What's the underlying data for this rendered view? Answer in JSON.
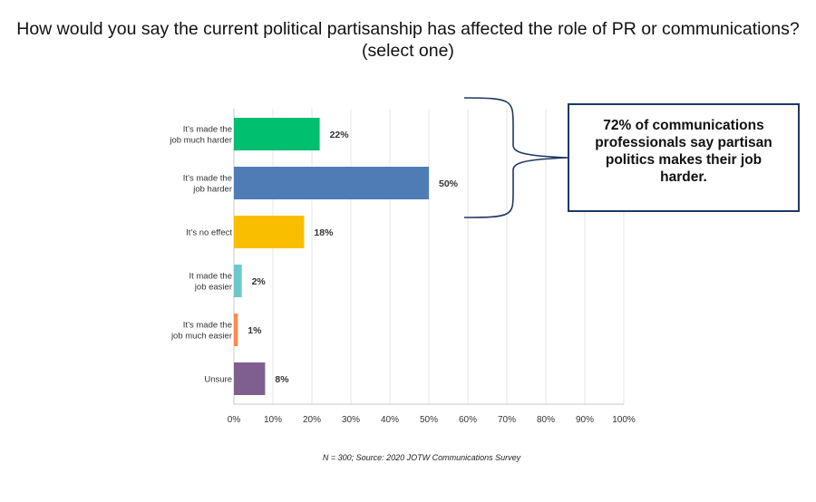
{
  "title": "How would you say the current political partisanship has affected the role of PR or communications? (select one)",
  "callout": "72% of communications professionals say partisan politics makes their job harder.",
  "footnote": "N = 300; Source: 2020 JOTW Communications Survey",
  "chart_data": {
    "type": "bar",
    "orientation": "horizontal",
    "categories": [
      [
        "It’s made the",
        "job much harder"
      ],
      [
        "It’s made the",
        "job harder"
      ],
      [
        "It’s no effect"
      ],
      [
        "It made the",
        "job easier"
      ],
      [
        "It’s made the",
        "job much easier"
      ],
      [
        "Unsure"
      ]
    ],
    "values": [
      22,
      50,
      18,
      2,
      1,
      8
    ],
    "data_labels": [
      "22%",
      "50%",
      "18%",
      "2%",
      "1%",
      "8%"
    ],
    "colors": [
      "#00bf6f",
      "#507cb6",
      "#f9be00",
      "#6bc8cd",
      "#ff8b4f",
      "#7f5f90"
    ],
    "xlim": [
      0,
      100
    ],
    "xticks": [
      "0%",
      "10%",
      "20%",
      "30%",
      "40%",
      "50%",
      "60%",
      "70%",
      "80%",
      "90%",
      "100%"
    ],
    "grid": true,
    "legend": "none"
  }
}
